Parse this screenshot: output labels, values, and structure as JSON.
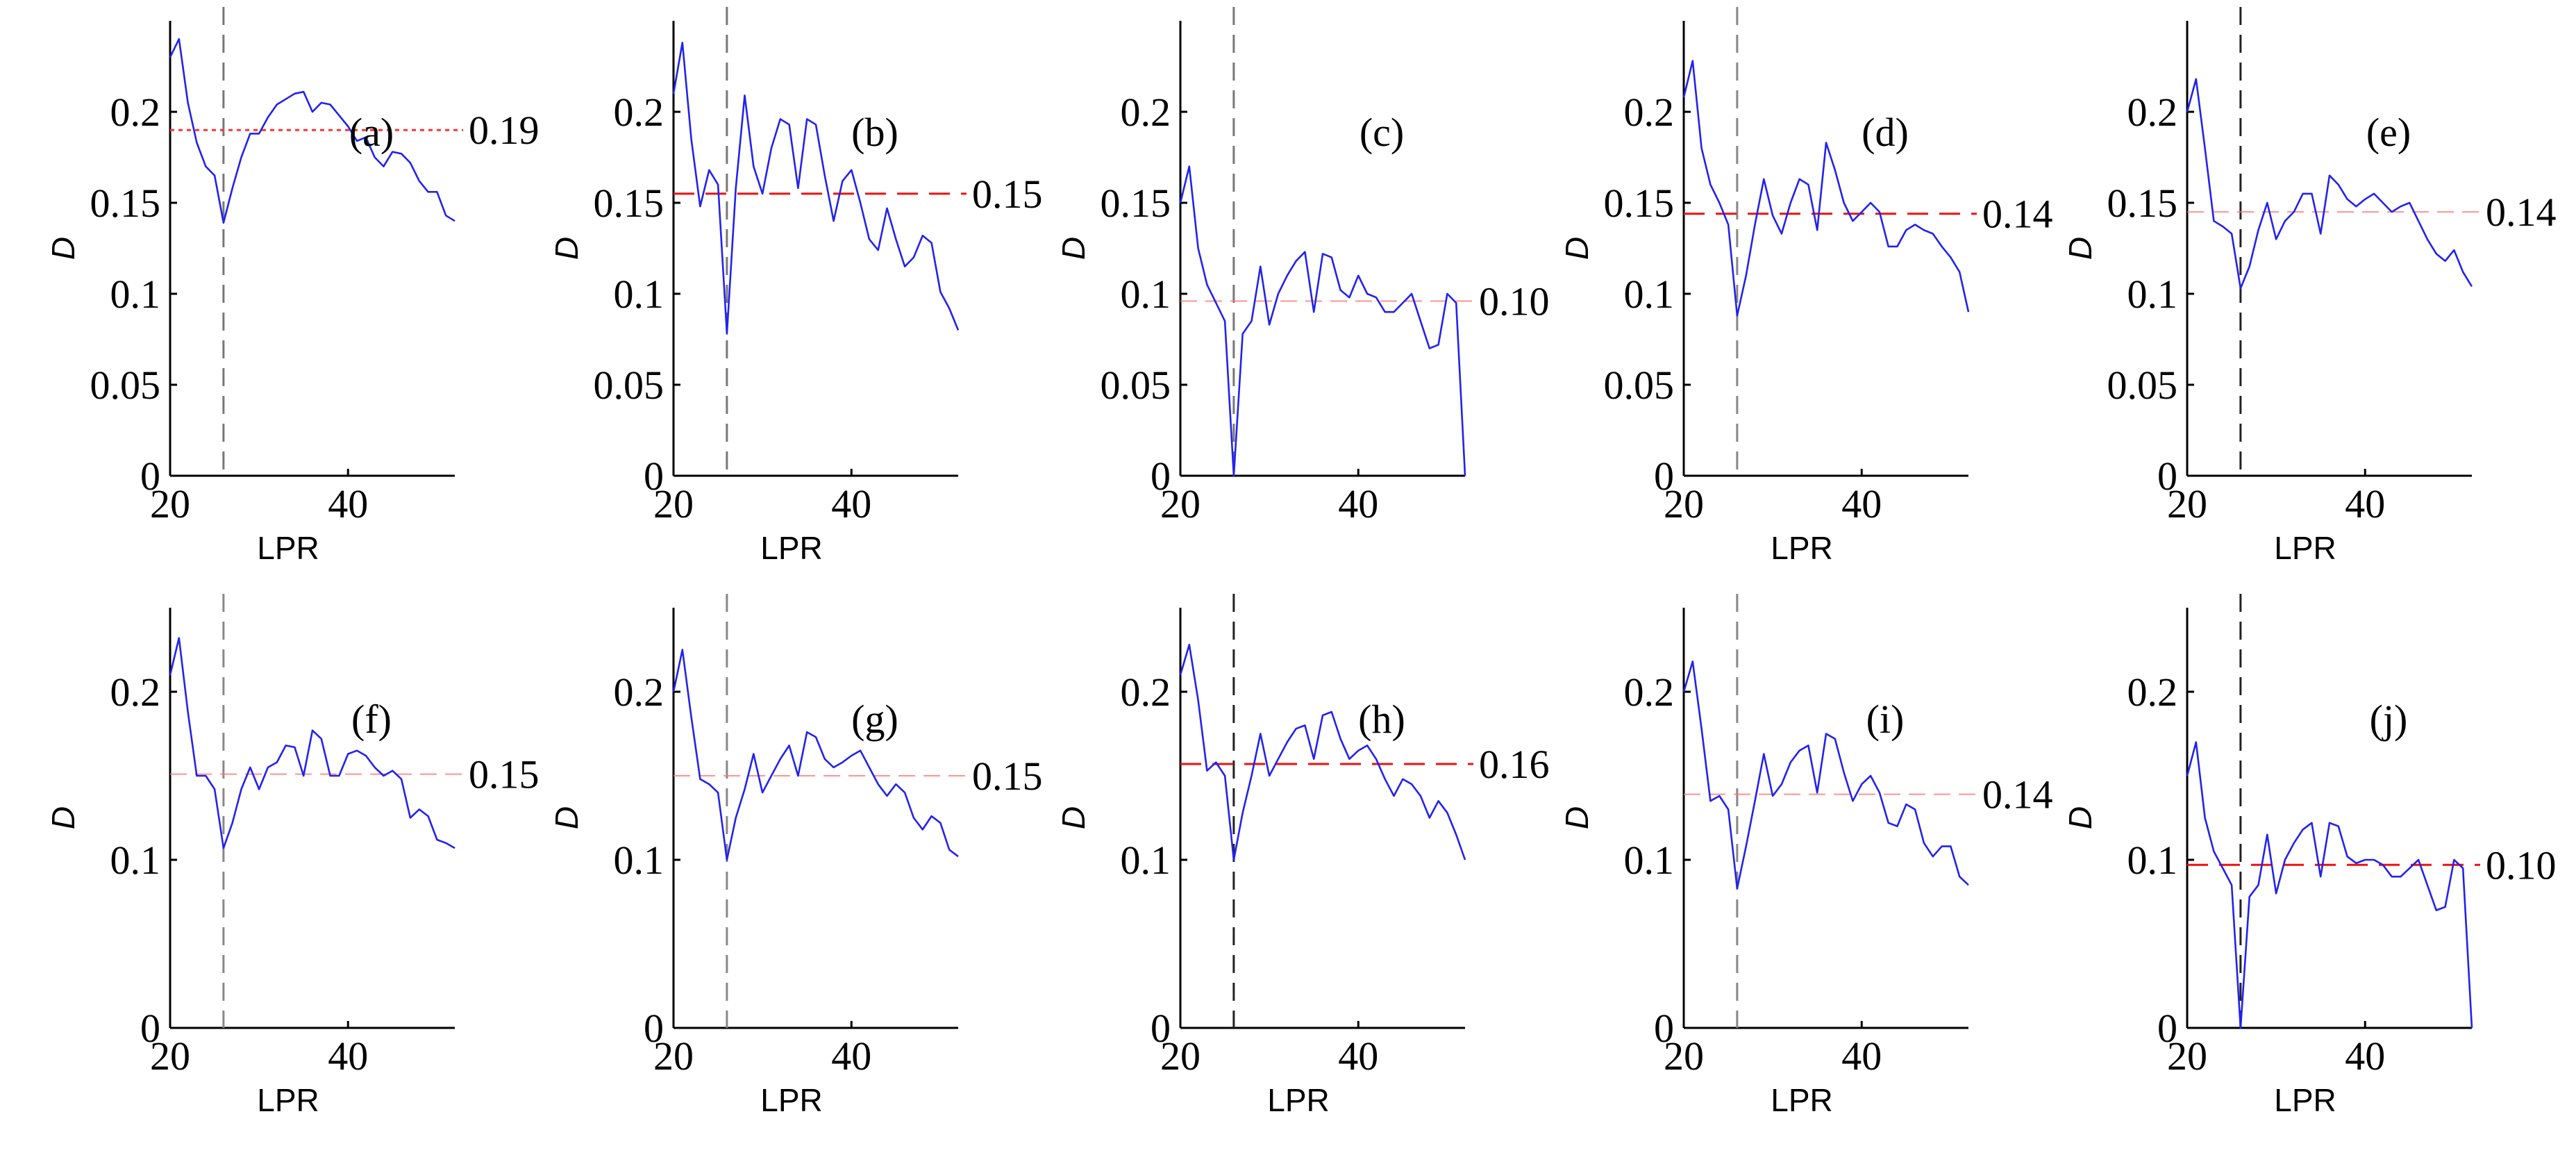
{
  "chart_data": [
    {
      "type": "line",
      "panel": "(a)",
      "mean_value": 0.19,
      "mean_label": "0.19",
      "mean_style": "dotted",
      "xlabel": "LPR",
      "ylabel": "D",
      "xlim": [
        20,
        52
      ],
      "ylim": [
        0,
        0.25
      ],
      "xticks": [
        "20",
        "40"
      ],
      "yticks": [
        "0",
        "0.05",
        "0.1",
        "0.15",
        "0.2"
      ],
      "vline_x": 26,
      "vline_color": "#777777",
      "line_color": "#2222ee",
      "mean_color": "#ff3333",
      "series": [
        {
          "x": [
            20,
            21,
            22,
            23,
            24,
            25,
            26,
            27,
            28,
            29,
            30,
            31,
            32,
            33,
            34,
            35,
            36,
            37,
            38,
            39,
            40,
            41,
            42,
            43,
            44,
            45,
            46,
            47,
            48,
            49,
            50,
            51,
            52
          ],
          "values": [
            0.23,
            0.24,
            0.205,
            0.183,
            0.17,
            0.165,
            0.139,
            0.158,
            0.175,
            0.188,
            0.188,
            0.197,
            0.204,
            0.207,
            0.21,
            0.211,
            0.2,
            0.205,
            0.204,
            0.198,
            0.192,
            0.184,
            0.186,
            0.175,
            0.17,
            0.178,
            0.177,
            0.172,
            0.162,
            0.156,
            0.156,
            0.143,
            0.14
          ]
        }
      ]
    },
    {
      "type": "line",
      "panel": "(b)",
      "mean_value": 0.155,
      "mean_label": "0.15",
      "mean_style": "dashed",
      "xlabel": "LPR",
      "ylabel": "D",
      "xlim": [
        20,
        52
      ],
      "ylim": [
        0,
        0.25
      ],
      "xticks": [
        "20",
        "40"
      ],
      "yticks": [
        "0",
        "0.05",
        "0.1",
        "0.15",
        "0.2"
      ],
      "vline_x": 26,
      "vline_color": "#777777",
      "line_color": "#2222ee",
      "mean_color": "#ee1111",
      "series": [
        {
          "x": [
            20,
            21,
            22,
            23,
            24,
            25,
            26,
            27,
            28,
            29,
            30,
            31,
            32,
            33,
            34,
            35,
            36,
            37,
            38,
            39,
            40,
            41,
            42,
            43,
            44,
            45,
            46,
            47,
            48,
            49,
            50,
            51,
            52
          ],
          "values": [
            0.21,
            0.238,
            0.185,
            0.148,
            0.168,
            0.16,
            0.078,
            0.158,
            0.209,
            0.17,
            0.155,
            0.18,
            0.196,
            0.193,
            0.158,
            0.196,
            0.193,
            0.165,
            0.14,
            0.162,
            0.168,
            0.15,
            0.13,
            0.124,
            0.147,
            0.13,
            0.115,
            0.12,
            0.132,
            0.128,
            0.101,
            0.092,
            0.08
          ]
        }
      ]
    },
    {
      "type": "line",
      "panel": "(c)",
      "mean_value": 0.096,
      "mean_label": "0.10",
      "mean_style": "dashed-faint",
      "xlabel": "",
      "ylabel": "D",
      "xlim": [
        20,
        52
      ],
      "ylim": [
        0,
        0.25
      ],
      "xticks": [
        "20",
        "40"
      ],
      "yticks": [
        "0",
        "0.05",
        "0.1",
        "0.15",
        "0.2"
      ],
      "vline_x": 26,
      "vline_color": "#777777",
      "line_color": "#2222ee",
      "mean_color": "#ff7777",
      "series": [
        {
          "x": [
            20,
            21,
            22,
            23,
            24,
            25,
            26,
            27,
            28,
            29,
            30,
            31,
            32,
            33,
            34,
            35,
            36,
            37,
            38,
            39,
            40,
            41,
            42,
            43,
            44,
            45,
            46,
            47,
            48,
            49,
            50,
            51,
            52
          ],
          "values": [
            0.15,
            0.17,
            0.125,
            0.105,
            0.095,
            0.085,
            0.0,
            0.078,
            0.085,
            0.115,
            0.083,
            0.1,
            0.11,
            0.118,
            0.123,
            0.09,
            0.122,
            0.12,
            0.102,
            0.098,
            0.11,
            0.1,
            0.098,
            0.09,
            0.09,
            0.095,
            0.1,
            0.085,
            0.07,
            0.072,
            0.1,
            0.095,
            0.0
          ]
        }
      ]
    },
    {
      "type": "line",
      "panel": "(d)",
      "mean_value": 0.144,
      "mean_label": "0.14",
      "mean_style": "dashed",
      "xlabel": "LPR",
      "ylabel": "D",
      "xlim": [
        20,
        52
      ],
      "ylim": [
        0,
        0.25
      ],
      "xticks": [
        "20",
        "40"
      ],
      "yticks": [
        "0",
        "0.05",
        "0.1",
        "0.15",
        "0.2"
      ],
      "vline_x": 26,
      "vline_color": "#888888",
      "line_color": "#2222ee",
      "mean_color": "#ee1111",
      "series": [
        {
          "x": [
            20,
            21,
            22,
            23,
            24,
            25,
            26,
            27,
            28,
            29,
            30,
            31,
            32,
            33,
            34,
            35,
            36,
            37,
            38,
            39,
            40,
            41,
            42,
            43,
            44,
            45,
            46,
            47,
            48,
            49,
            50,
            51,
            52
          ],
          "values": [
            0.208,
            0.228,
            0.18,
            0.16,
            0.15,
            0.138,
            0.088,
            0.11,
            0.138,
            0.163,
            0.143,
            0.133,
            0.15,
            0.163,
            0.16,
            0.135,
            0.183,
            0.168,
            0.15,
            0.14,
            0.145,
            0.15,
            0.145,
            0.126,
            0.126,
            0.135,
            0.138,
            0.135,
            0.133,
            0.126,
            0.12,
            0.112,
            0.09
          ]
        }
      ]
    },
    {
      "type": "line",
      "panel": "(e)",
      "mean_value": 0.145,
      "mean_label": "0.14",
      "mean_style": "dashed-faint",
      "xlabel": "LPR",
      "ylabel": "D",
      "xlim": [
        20,
        52
      ],
      "ylim": [
        0,
        0.25
      ],
      "xticks": [
        "20",
        "40"
      ],
      "yticks": [
        "0",
        "0.05",
        "0.1",
        "0.15",
        "0.2"
      ],
      "vline_x": 26,
      "vline_color": "#222222",
      "line_color": "#2222ee",
      "mean_color": "#ff7777",
      "series": [
        {
          "x": [
            20,
            21,
            22,
            23,
            24,
            25,
            26,
            27,
            28,
            29,
            30,
            31,
            32,
            33,
            34,
            35,
            36,
            37,
            38,
            39,
            40,
            41,
            42,
            43,
            44,
            45,
            46,
            47,
            48,
            49,
            50,
            51,
            52
          ],
          "values": [
            0.2,
            0.218,
            0.18,
            0.14,
            0.137,
            0.133,
            0.103,
            0.115,
            0.135,
            0.15,
            0.13,
            0.14,
            0.145,
            0.155,
            0.155,
            0.133,
            0.165,
            0.16,
            0.152,
            0.148,
            0.152,
            0.155,
            0.15,
            0.145,
            0.148,
            0.15,
            0.14,
            0.13,
            0.122,
            0.118,
            0.124,
            0.112,
            0.104
          ]
        }
      ]
    },
    {
      "type": "line",
      "panel": "(f)",
      "mean_value": 0.151,
      "mean_label": "0.15",
      "mean_style": "dashed-faint",
      "xlabel": "LPR",
      "ylabel": "D",
      "xlim": [
        20,
        52
      ],
      "ylim": [
        0,
        0.25
      ],
      "xticks": [
        "20",
        "40"
      ],
      "yticks": [
        "0",
        "0.1",
        "0.2"
      ],
      "vline_x": 26,
      "vline_color": "#888888",
      "line_color": "#2222ee",
      "mean_color": "#ff7777",
      "series": [
        {
          "x": [
            20,
            21,
            22,
            23,
            24,
            25,
            26,
            27,
            28,
            29,
            30,
            31,
            32,
            33,
            34,
            35,
            36,
            37,
            38,
            39,
            40,
            41,
            42,
            43,
            44,
            45,
            46,
            47,
            48,
            49,
            50,
            51,
            52
          ],
          "values": [
            0.21,
            0.232,
            0.188,
            0.15,
            0.15,
            0.142,
            0.107,
            0.122,
            0.142,
            0.155,
            0.142,
            0.155,
            0.158,
            0.168,
            0.167,
            0.15,
            0.177,
            0.172,
            0.15,
            0.15,
            0.163,
            0.165,
            0.162,
            0.155,
            0.15,
            0.153,
            0.148,
            0.125,
            0.13,
            0.126,
            0.112,
            0.11,
            0.107
          ]
        }
      ]
    },
    {
      "type": "line",
      "panel": "(g)",
      "mean_value": 0.15,
      "mean_label": "0.15",
      "mean_style": "dashed-faint",
      "xlabel": "LPR",
      "ylabel": "D",
      "xlim": [
        20,
        52
      ],
      "ylim": [
        0,
        0.25
      ],
      "xticks": [
        "20",
        "40"
      ],
      "yticks": [
        "0",
        "0.1",
        "0.2"
      ],
      "vline_x": 26,
      "vline_color": "#888888",
      "line_color": "#2222ee",
      "mean_color": "#ff7777",
      "series": [
        {
          "x": [
            20,
            21,
            22,
            23,
            24,
            25,
            26,
            27,
            28,
            29,
            30,
            31,
            32,
            33,
            34,
            35,
            36,
            37,
            38,
            39,
            40,
            41,
            42,
            43,
            44,
            45,
            46,
            47,
            48,
            49,
            50,
            51,
            52
          ],
          "values": [
            0.2,
            0.225,
            0.185,
            0.148,
            0.145,
            0.14,
            0.1,
            0.125,
            0.142,
            0.163,
            0.14,
            0.15,
            0.16,
            0.168,
            0.15,
            0.176,
            0.173,
            0.16,
            0.155,
            0.158,
            0.162,
            0.165,
            0.155,
            0.145,
            0.138,
            0.145,
            0.14,
            0.125,
            0.118,
            0.126,
            0.122,
            0.106,
            0.102
          ]
        }
      ]
    },
    {
      "type": "line",
      "panel": "(h)",
      "mean_value": 0.157,
      "mean_label": "0.16",
      "mean_style": "dashed",
      "xlabel": "LPR",
      "ylabel": "D",
      "xlim": [
        20,
        52
      ],
      "ylim": [
        0,
        0.25
      ],
      "xticks": [
        "20",
        "40"
      ],
      "yticks": [
        "0",
        "0.1",
        "0.2"
      ],
      "vline_x": 26,
      "vline_color": "#222222",
      "line_color": "#2222ee",
      "mean_color": "#ee1111",
      "series": [
        {
          "x": [
            20,
            21,
            22,
            23,
            24,
            25,
            26,
            27,
            28,
            29,
            30,
            31,
            32,
            33,
            34,
            35,
            36,
            37,
            38,
            39,
            40,
            41,
            42,
            43,
            44,
            45,
            46,
            47,
            48,
            49,
            50,
            51,
            52
          ],
          "values": [
            0.21,
            0.228,
            0.195,
            0.153,
            0.158,
            0.15,
            0.1,
            0.128,
            0.15,
            0.175,
            0.15,
            0.16,
            0.17,
            0.178,
            0.18,
            0.16,
            0.186,
            0.188,
            0.172,
            0.16,
            0.165,
            0.168,
            0.16,
            0.148,
            0.138,
            0.148,
            0.145,
            0.138,
            0.125,
            0.135,
            0.128,
            0.115,
            0.1
          ]
        }
      ]
    },
    {
      "type": "line",
      "panel": "(i)",
      "mean_value": 0.139,
      "mean_label": "0.14",
      "mean_style": "dashed-faint",
      "xlabel": "LPR",
      "ylabel": "D",
      "xlim": [
        20,
        52
      ],
      "ylim": [
        0,
        0.25
      ],
      "xticks": [
        "20",
        "40"
      ],
      "yticks": [
        "0",
        "0.1",
        "0.2"
      ],
      "vline_x": 26,
      "vline_color": "#888888",
      "line_color": "#2222ee",
      "mean_color": "#ff7777",
      "series": [
        {
          "x": [
            20,
            21,
            22,
            23,
            24,
            25,
            26,
            27,
            28,
            29,
            30,
            31,
            32,
            33,
            34,
            35,
            36,
            37,
            38,
            39,
            40,
            41,
            42,
            43,
            44,
            45,
            46,
            47,
            48,
            49,
            50,
            51,
            52
          ],
          "values": [
            0.2,
            0.218,
            0.178,
            0.135,
            0.138,
            0.13,
            0.083,
            0.108,
            0.135,
            0.163,
            0.138,
            0.145,
            0.158,
            0.165,
            0.168,
            0.14,
            0.175,
            0.172,
            0.152,
            0.135,
            0.145,
            0.15,
            0.14,
            0.122,
            0.12,
            0.133,
            0.13,
            0.11,
            0.102,
            0.108,
            0.108,
            0.09,
            0.085
          ]
        }
      ]
    },
    {
      "type": "line",
      "panel": "(j)",
      "mean_value": 0.097,
      "mean_label": "0.10",
      "mean_style": "dashed",
      "xlabel": "LPR",
      "ylabel": "D",
      "xlim": [
        20,
        52
      ],
      "ylim": [
        0,
        0.25
      ],
      "xticks": [
        "20",
        "40"
      ],
      "yticks": [
        "0",
        "0.1",
        "0.2"
      ],
      "vline_x": 26,
      "vline_color": "#222222",
      "line_color": "#2222ee",
      "mean_color": "#ee1111",
      "series": [
        {
          "x": [
            20,
            21,
            22,
            23,
            24,
            25,
            26,
            27,
            28,
            29,
            30,
            31,
            32,
            33,
            34,
            35,
            36,
            37,
            38,
            39,
            40,
            41,
            42,
            43,
            44,
            45,
            46,
            47,
            48,
            49,
            50,
            51,
            52
          ],
          "values": [
            0.15,
            0.17,
            0.125,
            0.105,
            0.095,
            0.085,
            0.0,
            0.078,
            0.085,
            0.115,
            0.08,
            0.1,
            0.11,
            0.118,
            0.122,
            0.09,
            0.122,
            0.12,
            0.102,
            0.098,
            0.1,
            0.1,
            0.097,
            0.09,
            0.09,
            0.095,
            0.1,
            0.085,
            0.07,
            0.072,
            0.1,
            0.095,
            0.0
          ]
        }
      ]
    }
  ]
}
